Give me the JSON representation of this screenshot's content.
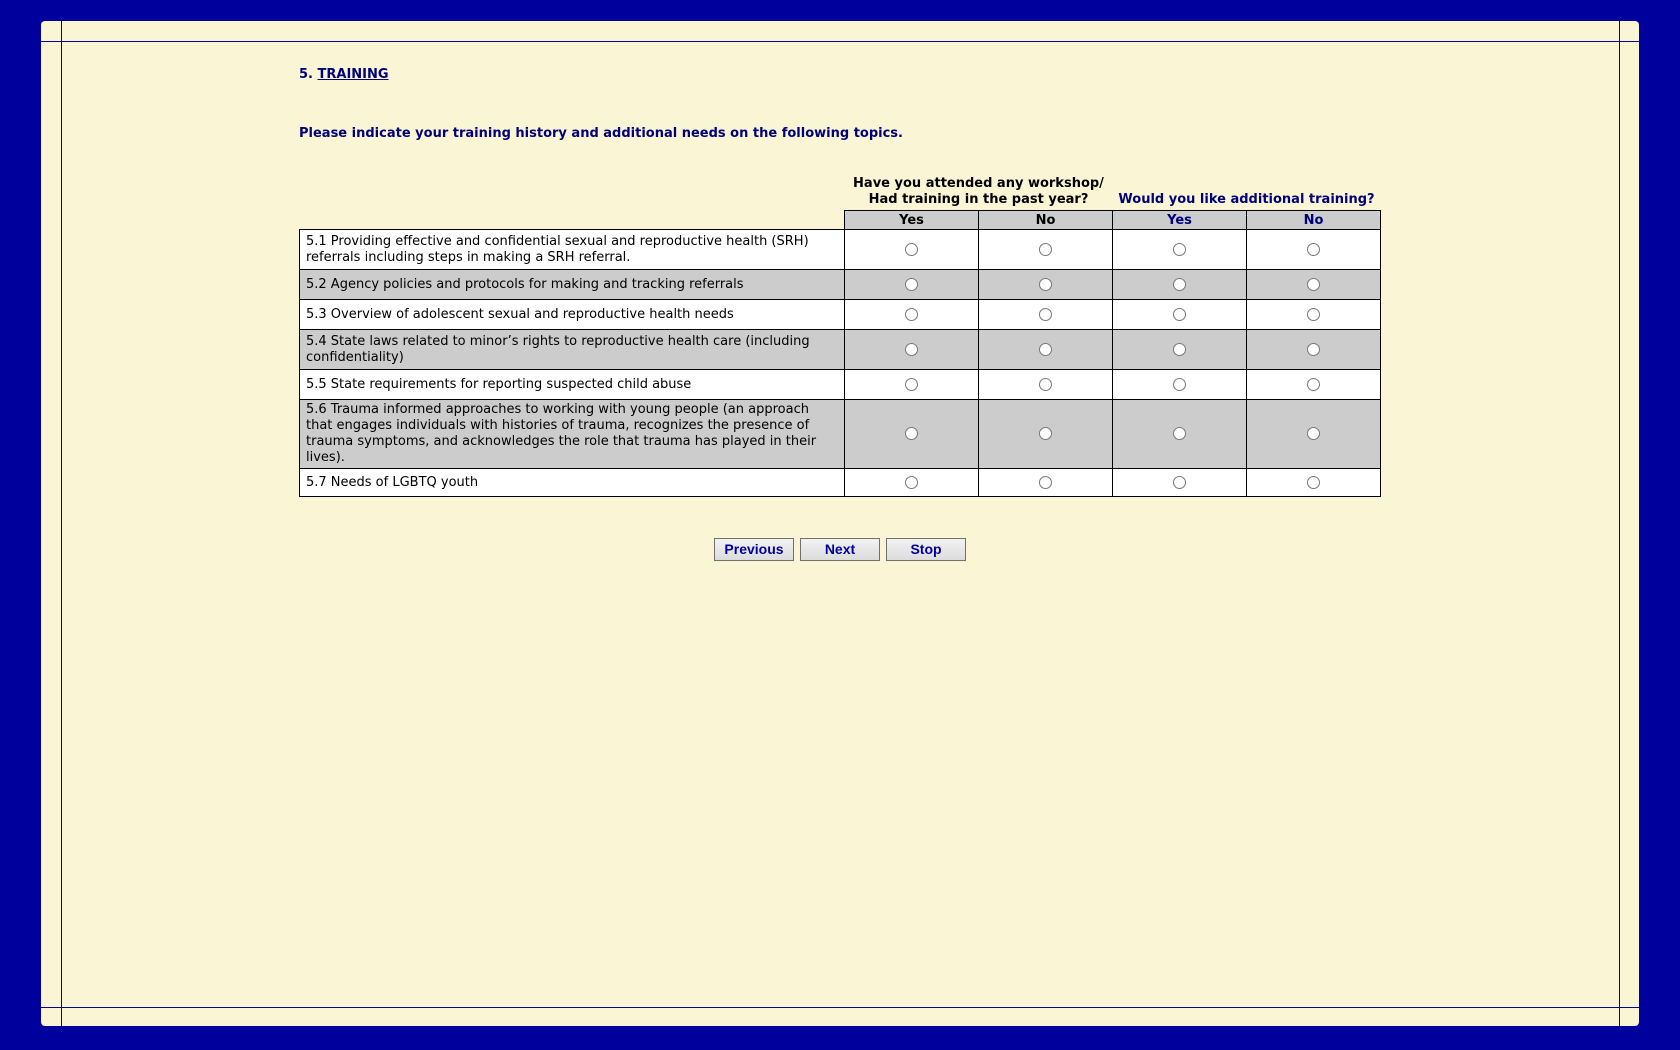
{
  "section": {
    "number": "5.",
    "title": "TRAINING"
  },
  "instructions": "Please indicate your training history and additional needs on the following topics.",
  "columns": {
    "group1": [
      "Have you attended any workshop/",
      "Had training in the past year?"
    ],
    "group2": "Would you like additional training?",
    "sub": [
      "Yes",
      "No",
      "Yes",
      "No"
    ]
  },
  "rows": [
    {
      "label": "5.1 Providing effective and confidential sexual and reproductive health (SRH) referrals including steps in making a SRH referral."
    },
    {
      "label": "5.2 Agency policies and protocols for making and tracking referrals"
    },
    {
      "label": "5.3 Overview of adolescent sexual and reproductive health needs"
    },
    {
      "label": "5.4 State laws related to minor’s rights to reproductive health care (including confidentiality)"
    },
    {
      "label": "5.5 State requirements for reporting suspected child abuse"
    },
    {
      "label": "5.6 Trauma informed approaches to working with young people (an approach that engages individuals with histories of trauma, recognizes the presence of trauma symptoms, and acknowledges the role that trauma has played in their lives)."
    },
    {
      "label": "5.7 Needs of LGBTQ youth"
    }
  ],
  "buttons": {
    "previous": "Previous",
    "next": "Next",
    "stop": "Stop"
  },
  "colors": {
    "frame": "#00009c",
    "panel": "#faf5d4",
    "text": "#00007a",
    "alt_row": "#cccccc"
  }
}
